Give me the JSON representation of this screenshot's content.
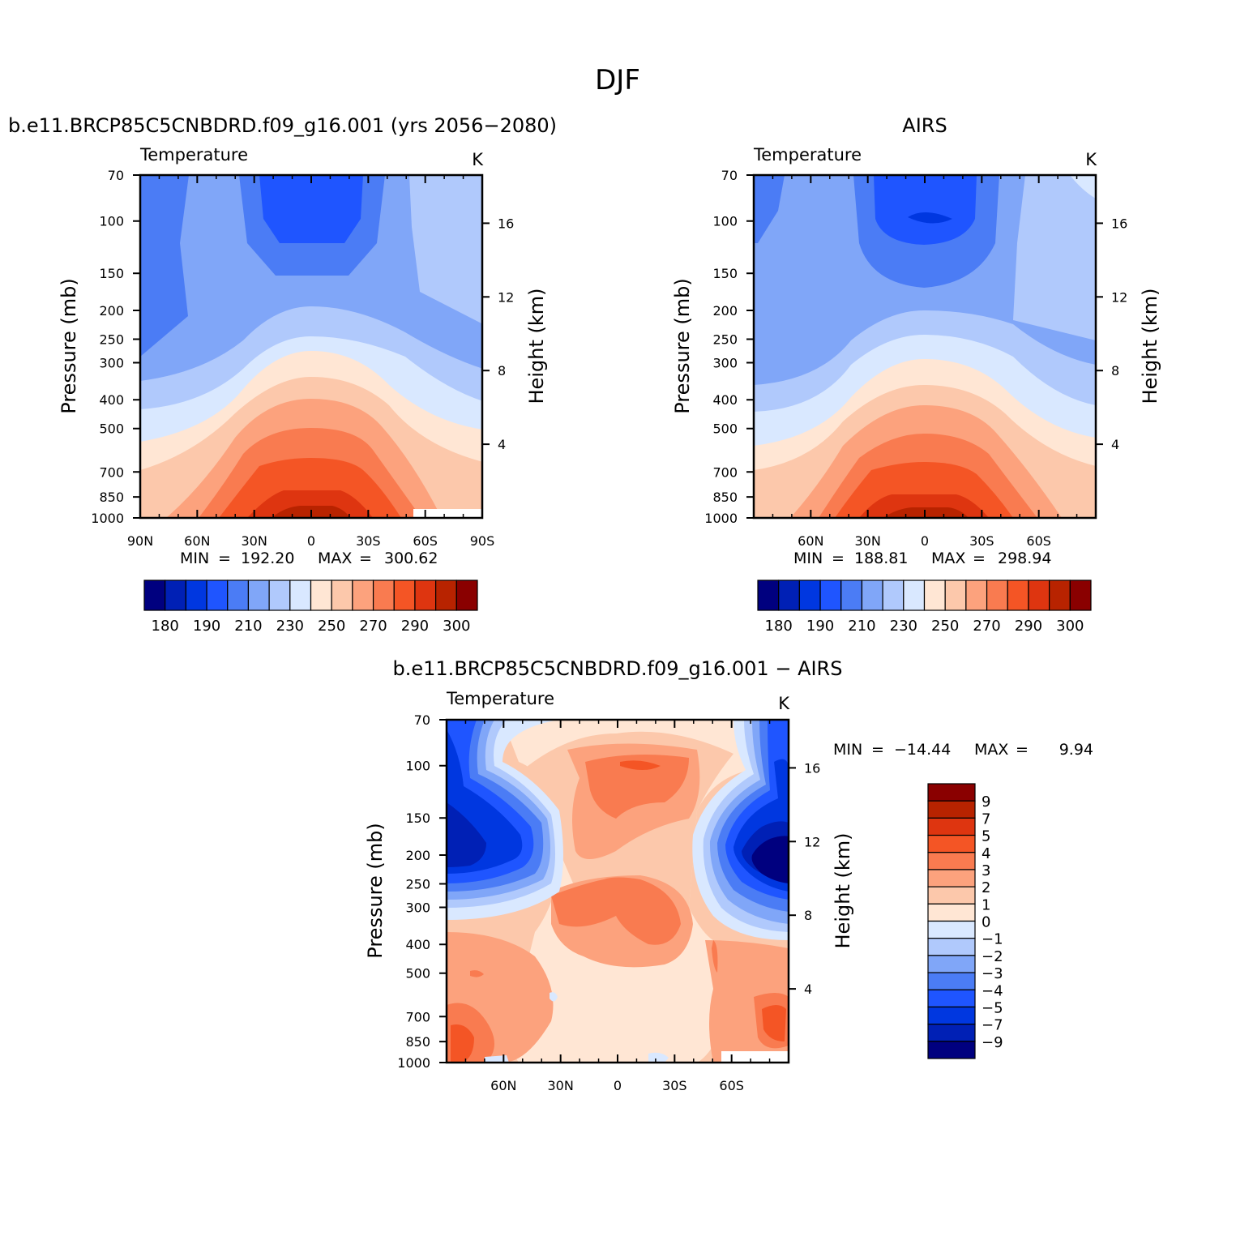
{
  "figure": {
    "title": "DJF"
  },
  "colors": {
    "model_obs_palette": [
      "#00007f",
      "#0020b5",
      "#0037e0",
      "#1f55ff",
      "#4b7cf5",
      "#80a6f8",
      "#b0c9fc",
      "#d9e8ff",
      "#ffe6d4",
      "#fcc8ab",
      "#fca27d",
      "#f97b50",
      "#f45525",
      "#de3510",
      "#b82300",
      "#8a0000"
    ],
    "diff_palette": [
      "#00007f",
      "#0020b5",
      "#0037e0",
      "#1f55ff",
      "#4b7cf5",
      "#80a6f8",
      "#b0c9fc",
      "#d9e8ff",
      "#ffe6d4",
      "#fcc8ab",
      "#fca27d",
      "#f97b50",
      "#f45525",
      "#de3510",
      "#b82300",
      "#8a0000"
    ]
  },
  "chart_data": [
    {
      "id": "model",
      "type": "contour",
      "title": "b.e11.BRCP85C5CNBDRD.f09_g16.001 (yrs 2056−2080)",
      "left_label": "Temperature",
      "right_label": "K",
      "ylabel": "Pressure (mb)",
      "y2label": "Height (km)",
      "pressure_ticks": [
        "70",
        "100",
        "150",
        "200",
        "250",
        "300",
        "400",
        "500",
        "700",
        "850",
        "1000"
      ],
      "pressure_values": [
        70,
        100,
        150,
        200,
        250,
        300,
        400,
        500,
        700,
        850,
        1000
      ],
      "height_ticks": [
        "16",
        "12",
        "8",
        "4"
      ],
      "height_values": [
        16,
        12,
        8,
        4
      ],
      "lat_ticks": [
        "90N",
        "60N",
        "30N",
        "0",
        "30S",
        "60S",
        "90S"
      ],
      "lat_values": [
        90,
        60,
        30,
        0,
        -30,
        -60,
        -90
      ],
      "xlim": [
        90,
        -90
      ],
      "ylim": [
        70,
        1000
      ],
      "stats": {
        "min_label": "MIN",
        "min": "192.20",
        "max_label": "MAX",
        "max": "300.62"
      },
      "colorbar_labels": [
        "180",
        "190",
        "210",
        "230",
        "250",
        "270",
        "290",
        "300"
      ],
      "colorbar_levels": [
        180,
        185,
        190,
        200,
        210,
        220,
        230,
        240,
        250,
        260,
        270,
        280,
        290,
        295,
        300
      ]
    },
    {
      "id": "airs",
      "type": "contour",
      "title": "AIRS",
      "left_label": "Temperature",
      "right_label": "K",
      "ylabel": "Pressure (mb)",
      "y2label": "Height (km)",
      "pressure_ticks": [
        "70",
        "100",
        "150",
        "200",
        "250",
        "300",
        "400",
        "500",
        "700",
        "850",
        "1000"
      ],
      "pressure_values": [
        70,
        100,
        150,
        200,
        250,
        300,
        400,
        500,
        700,
        850,
        1000
      ],
      "height_ticks": [
        "16",
        "12",
        "8",
        "4"
      ],
      "height_values": [
        16,
        12,
        8,
        4
      ],
      "lat_ticks": [
        "60N",
        "30N",
        "0",
        "30S",
        "60S"
      ],
      "lat_values": [
        60,
        30,
        0,
        -30,
        -60
      ],
      "xlim": [
        90,
        -90
      ],
      "ylim": [
        70,
        1000
      ],
      "stats": {
        "min_label": "MIN",
        "min": "188.81",
        "max_label": "MAX",
        "max": "298.94"
      },
      "colorbar_labels": [
        "180",
        "190",
        "210",
        "230",
        "250",
        "270",
        "290",
        "300"
      ],
      "colorbar_levels": [
        180,
        185,
        190,
        200,
        210,
        220,
        230,
        240,
        250,
        260,
        270,
        280,
        290,
        295,
        300
      ]
    },
    {
      "id": "diff",
      "type": "contour",
      "title": "b.e11.BRCP85C5CNBDRD.f09_g16.001 − AIRS",
      "left_label": "Temperature",
      "right_label": "K",
      "ylabel": "Pressure (mb)",
      "y2label": "Height (km)",
      "pressure_ticks": [
        "70",
        "100",
        "150",
        "200",
        "250",
        "300",
        "400",
        "500",
        "700",
        "850",
        "1000"
      ],
      "pressure_values": [
        70,
        100,
        150,
        200,
        250,
        300,
        400,
        500,
        700,
        850,
        1000
      ],
      "height_ticks": [
        "16",
        "12",
        "8",
        "4"
      ],
      "height_values": [
        16,
        12,
        8,
        4
      ],
      "lat_ticks": [
        "60N",
        "30N",
        "0",
        "30S",
        "60S"
      ],
      "lat_values": [
        60,
        30,
        0,
        -30,
        -60
      ],
      "xlim": [
        90,
        -90
      ],
      "ylim": [
        70,
        1000
      ],
      "stats": {
        "min_label": "MIN",
        "min": "−14.44",
        "max_label": "MAX",
        "max": "9.94"
      },
      "colorbar_labels": [
        "9",
        "7",
        "5",
        "4",
        "3",
        "2",
        "1",
        "0",
        "−1",
        "−2",
        "−3",
        "−4",
        "−5",
        "−7",
        "−9"
      ],
      "colorbar_levels": [
        9,
        7,
        5,
        4,
        3,
        2,
        1,
        0,
        -1,
        -2,
        -3,
        -4,
        -5,
        -7,
        -9
      ]
    }
  ]
}
